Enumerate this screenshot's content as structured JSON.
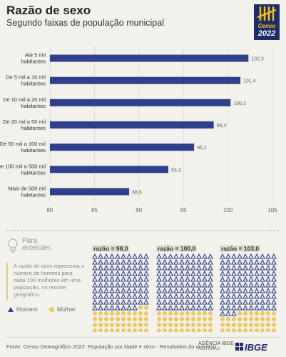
{
  "header": {
    "title": "Razão de sexo",
    "subtitle": "Segundo faixas de população municipal"
  },
  "logo": {
    "line1": "Censo",
    "line2": "2022"
  },
  "chart_data": {
    "type": "bar",
    "orientation": "horizontal",
    "categories": [
      [
        "Até 5 mil",
        "habitantes"
      ],
      [
        "De 5 mil a 10 mil",
        "habitantes"
      ],
      [
        "De 10 mil a 20 mil",
        "habitantes"
      ],
      [
        "De 20 mil a 50 mil",
        "habitantes"
      ],
      [
        "De 50 mil a 100 mil",
        "habitantes"
      ],
      [
        "De 100 mil a 500 mil",
        "habitantes"
      ],
      [
        "Mais de 500 mil",
        "habitantes"
      ]
    ],
    "values": [
      102.3,
      101.4,
      100.3,
      98.4,
      96.2,
      93.3,
      88.9
    ],
    "value_labels": [
      "102,3",
      "101,4",
      "100,3",
      "98,4",
      "96,2",
      "93,3",
      "88,9"
    ],
    "xlim": [
      80,
      105
    ],
    "xticks": [
      80,
      85,
      90,
      95,
      100,
      105
    ],
    "grid": true,
    "bar_color": "#2e3f8c"
  },
  "explain": {
    "label_line1": "Para",
    "label_line2": "entender:",
    "definition": "A razão de sexo representa o número de homens para cada 100 mulheres em uma população, no recorte geográfico.",
    "legend_men": "Homem",
    "legend_women": "Mulher",
    "blocks": [
      {
        "label": "razão = 98,0",
        "men": 98,
        "women": 100
      },
      {
        "label": "razão = 100,0",
        "men": 100,
        "women": 100
      },
      {
        "label": "razão = 103,0",
        "men": 103,
        "women": 100
      }
    ]
  },
  "footer": {
    "source": "Fonte: Censo Demográfico 2022: População por idade e sexo - Resultados do universo",
    "agencia_line1": "AGÊNCIA IBGE",
    "agencia_line2": "NOTÍCIAS",
    "ibge": "IBGE"
  },
  "colors": {
    "men": "#2e3f8c",
    "women": "#f0c75e",
    "background": "#f2f1ec"
  }
}
